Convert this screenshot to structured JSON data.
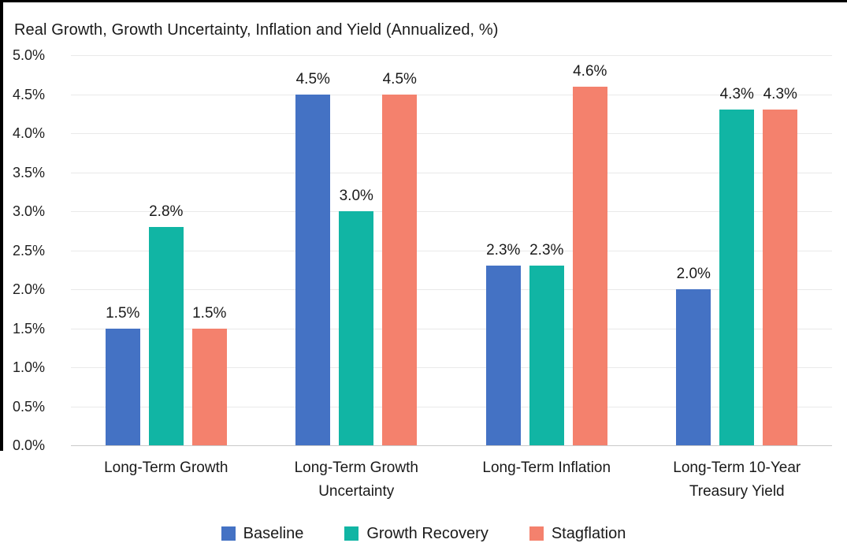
{
  "frame": {
    "top_border_color": "#000000",
    "left_border_color": "#000000",
    "background": "#ffffff"
  },
  "chart_data": {
    "type": "bar",
    "title": "Real Growth, Growth Uncertainty, Inflation and Yield (Annualized, %)",
    "categories": [
      "Long-Term Growth",
      "Long-Term Growth Uncertainty",
      "Long-Term Inflation",
      "Long-Term 10-Year Treasury Yield"
    ],
    "series": [
      {
        "name": "Baseline",
        "color": "#4472C4",
        "values": [
          1.5,
          4.5,
          2.3,
          2.0
        ]
      },
      {
        "name": "Growth Recovery",
        "color": "#11B5A4",
        "values": [
          2.8,
          3.0,
          2.3,
          4.3
        ]
      },
      {
        "name": "Stagflation",
        "color": "#F4816D",
        "values": [
          1.5,
          4.5,
          4.6,
          4.3
        ]
      }
    ],
    "data_labels": [
      [
        "1.5%",
        "4.5%",
        "2.3%",
        "2.0%"
      ],
      [
        "2.8%",
        "3.0%",
        "2.3%",
        "4.3%"
      ],
      [
        "1.5%",
        "4.5%",
        "4.6%",
        "4.3%"
      ]
    ],
    "y_axis": {
      "min": 0,
      "max": 5,
      "step": 0.5,
      "tick_labels": [
        "0.0%",
        "0.5%",
        "1.0%",
        "1.5%",
        "2.0%",
        "2.5%",
        "3.0%",
        "3.5%",
        "4.0%",
        "4.5%",
        "5.0%"
      ]
    },
    "grid": true,
    "gridline_color": "#e9e9e9",
    "legend_position": "bottom"
  }
}
